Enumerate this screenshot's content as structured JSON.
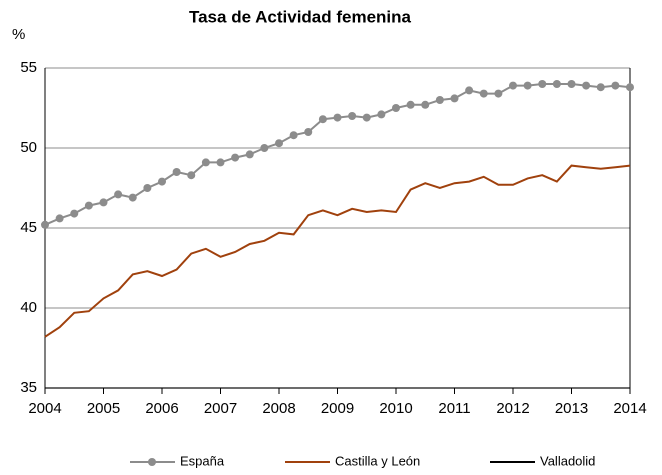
{
  "chart_data": {
    "type": "line",
    "title": "Tasa de Actividad femenina",
    "y_label": "%",
    "x": [
      2004,
      2004.25,
      2004.5,
      2004.75,
      2005,
      2005.25,
      2005.5,
      2005.75,
      2006,
      2006.25,
      2006.5,
      2006.75,
      2007,
      2007.25,
      2007.5,
      2007.75,
      2008,
      2008.25,
      2008.5,
      2008.75,
      2009,
      2009.25,
      2009.5,
      2009.75,
      2010,
      2010.25,
      2010.5,
      2010.75,
      2011,
      2011.25,
      2011.5,
      2011.75,
      2012,
      2012.25,
      2012.5,
      2012.75,
      2013,
      2013.25,
      2013.5,
      2013.75,
      2014
    ],
    "series": [
      {
        "name": "España",
        "color": "#8c8c8c",
        "marker": true,
        "values": [
          45.2,
          45.6,
          45.9,
          46.4,
          46.6,
          47.1,
          46.9,
          47.5,
          47.9,
          48.5,
          48.3,
          49.1,
          49.1,
          49.4,
          49.6,
          50.0,
          50.3,
          50.8,
          51.0,
          51.8,
          51.9,
          52.0,
          51.9,
          52.1,
          52.5,
          52.7,
          52.7,
          53.0,
          53.1,
          53.6,
          53.4,
          53.4,
          53.9,
          53.9,
          54.0,
          54.0,
          54.0,
          53.9,
          53.8,
          53.9,
          53.8
        ]
      },
      {
        "name": "Castilla y León",
        "color": "#a0410d",
        "marker": false,
        "values": [
          38.2,
          38.8,
          39.7,
          39.8,
          40.6,
          41.1,
          42.1,
          42.3,
          42.0,
          42.4,
          43.4,
          43.7,
          43.2,
          43.5,
          44.0,
          44.2,
          44.7,
          44.6,
          45.8,
          46.1,
          45.8,
          46.2,
          46.0,
          46.1,
          46.0,
          47.4,
          47.8,
          47.5,
          47.8,
          47.9,
          48.2,
          47.7,
          47.7,
          48.1,
          48.3,
          47.9,
          48.9,
          48.8,
          48.7,
          48.8,
          48.9
        ]
      },
      {
        "name": "Valladolid",
        "color": "#000000",
        "marker": false,
        "values": [
          null,
          null,
          null,
          null,
          null,
          null,
          null,
          null,
          null,
          null,
          null,
          null,
          null,
          null,
          null,
          null,
          null,
          null,
          null,
          null,
          null,
          null,
          null,
          null,
          null,
          null,
          null,
          null,
          null,
          null,
          null,
          null,
          null,
          null,
          null,
          null,
          null,
          null,
          null,
          null,
          null
        ]
      }
    ],
    "xlim": [
      2004,
      2014
    ],
    "xticks": [
      2004,
      2005,
      2006,
      2007,
      2008,
      2009,
      2010,
      2011,
      2012,
      2013,
      2014
    ],
    "ylim": [
      35,
      55
    ],
    "yticks": [
      35,
      40,
      45,
      50,
      55
    ],
    "grid": true
  }
}
